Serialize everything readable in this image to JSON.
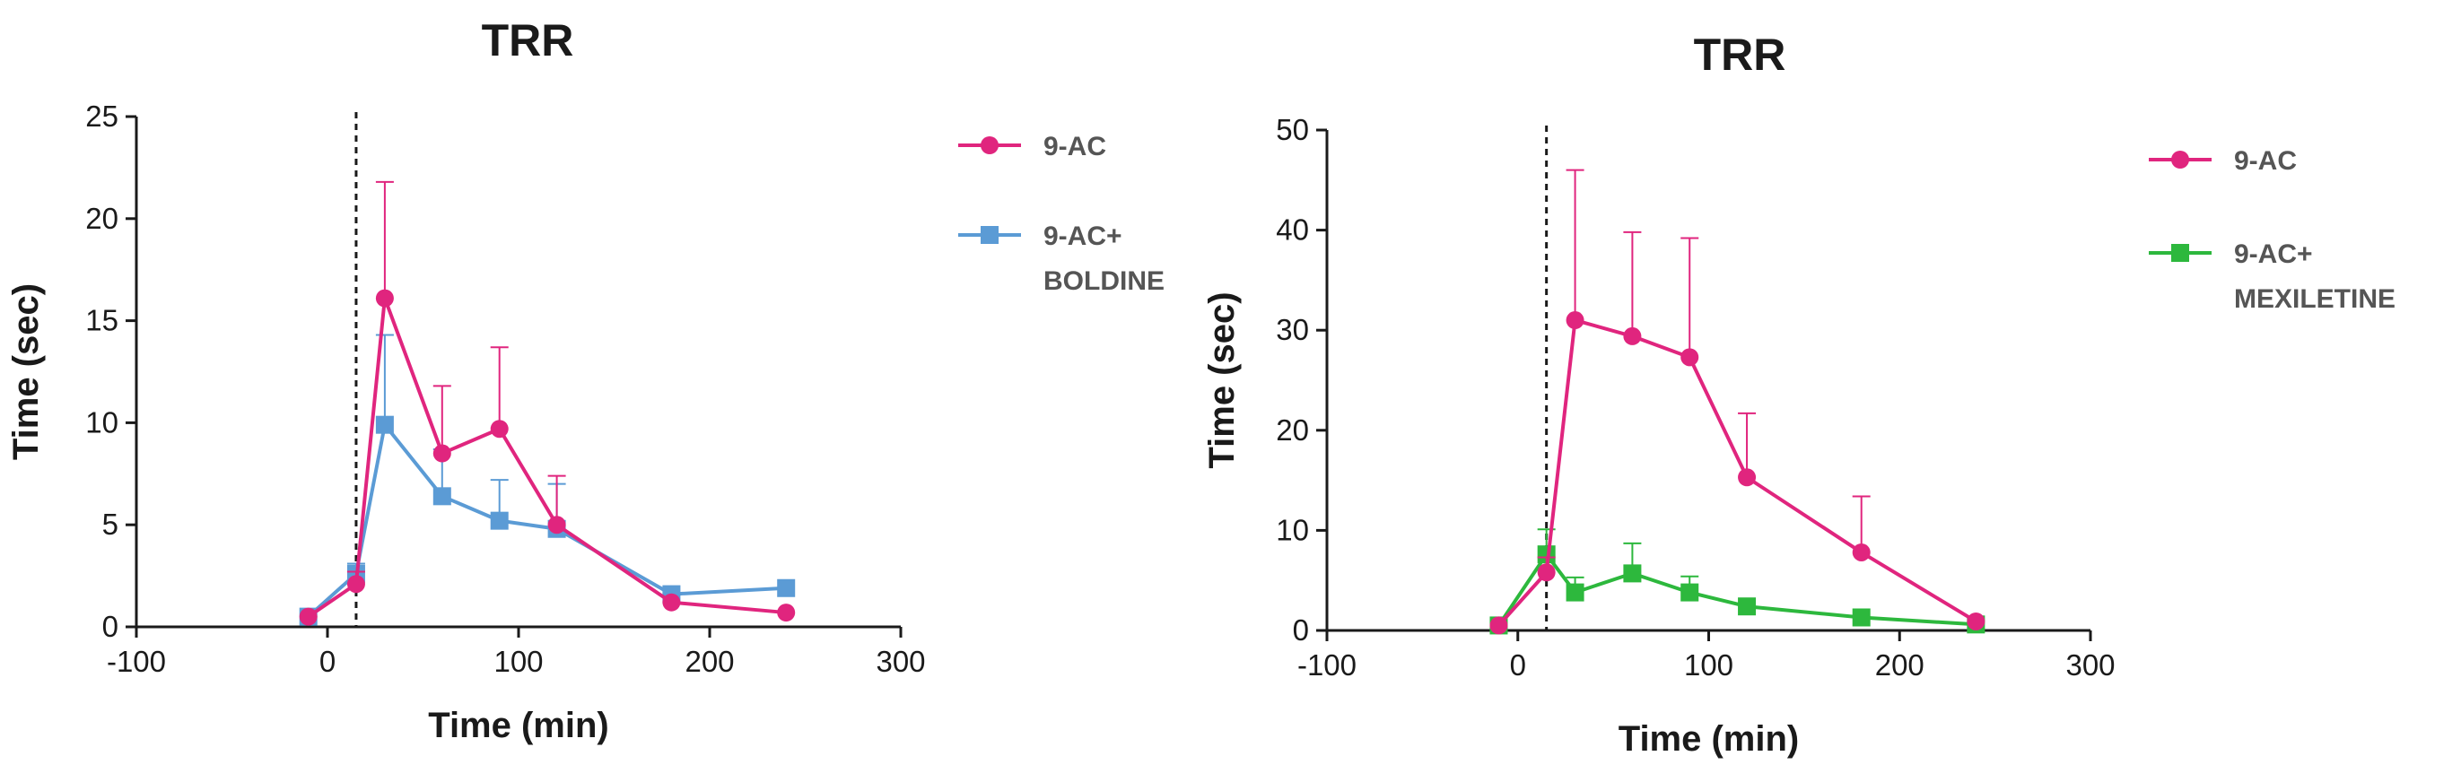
{
  "chart_data": [
    {
      "type": "line",
      "title": "TRR",
      "xlabel": "Time (min)",
      "ylabel": "Time (sec)",
      "xlim": [
        -100,
        300
      ],
      "ylim": [
        0,
        25
      ],
      "xticks": [
        "-100",
        "0",
        "100",
        "200",
        "300"
      ],
      "yticks": [
        "0",
        "5",
        "10",
        "15",
        "20",
        "25"
      ],
      "vline_x": 15,
      "legend_position": "right",
      "series": [
        {
          "name": "9-AC",
          "color": "#e0257e",
          "marker": "circle",
          "x": [
            -10,
            15,
            30,
            60,
            90,
            120,
            180,
            240
          ],
          "y": [
            0.5,
            2.1,
            16.1,
            8.5,
            9.7,
            5.0,
            1.2,
            0.7
          ],
          "err": [
            0,
            0.6,
            5.7,
            3.3,
            4.0,
            2.4,
            0,
            0
          ]
        },
        {
          "name": "9-AC+ BOLDINE",
          "label_lines": [
            "9-AC+",
            "BOLDINE"
          ],
          "color": "#5b9bd5",
          "marker": "square",
          "x": [
            -10,
            15,
            30,
            60,
            90,
            120,
            180,
            240
          ],
          "y": [
            0.5,
            2.6,
            9.9,
            6.4,
            5.2,
            4.8,
            1.6,
            1.9
          ],
          "err": [
            0,
            0.5,
            4.4,
            2.3,
            2.0,
            2.2,
            0,
            0
          ]
        }
      ]
    },
    {
      "type": "line",
      "title": "TRR",
      "xlabel": "Time (min)",
      "ylabel": "Time (sec)",
      "xlim": [
        -100,
        300
      ],
      "ylim": [
        0,
        50
      ],
      "xticks": [
        "-100",
        "0",
        "100",
        "200",
        "300"
      ],
      "yticks": [
        "0",
        "10",
        "20",
        "30",
        "40",
        "50"
      ],
      "vline_x": 15,
      "legend_position": "right",
      "series": [
        {
          "name": "9-AC",
          "color": "#e0257e",
          "marker": "circle",
          "x": [
            -10,
            15,
            30,
            60,
            90,
            120,
            180,
            240
          ],
          "y": [
            0.5,
            5.8,
            31.0,
            29.4,
            27.3,
            15.3,
            7.8,
            0.9
          ],
          "err": [
            0,
            1.5,
            15.0,
            10.4,
            11.9,
            6.4,
            5.6,
            0
          ]
        },
        {
          "name": "9-AC+ MEXILETINE",
          "label_lines": [
            "9-AC+",
            "MEXILETINE"
          ],
          "color": "#2db83d",
          "marker": "square",
          "x": [
            -10,
            15,
            30,
            60,
            90,
            120,
            180,
            240
          ],
          "y": [
            0.5,
            7.6,
            3.8,
            5.7,
            3.8,
            2.4,
            1.3,
            0.6
          ],
          "err": [
            0,
            2.5,
            1.5,
            3.0,
            1.6,
            0,
            0,
            0
          ]
        }
      ]
    }
  ]
}
